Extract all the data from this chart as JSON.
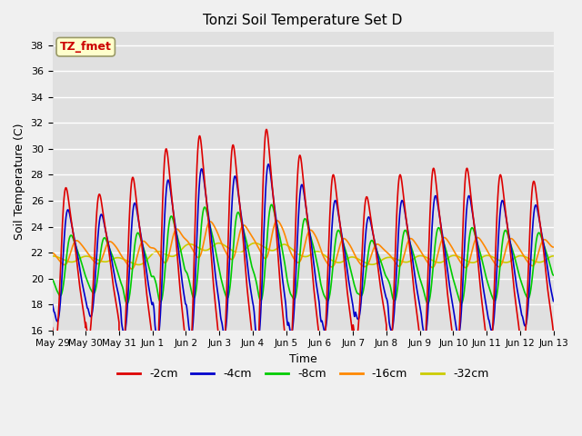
{
  "title": "Tonzi Soil Temperature Set D",
  "xlabel": "Time",
  "ylabel": "Soil Temperature (C)",
  "ylim": [
    16,
    39
  ],
  "yticks": [
    16,
    18,
    20,
    22,
    24,
    26,
    28,
    30,
    32,
    34,
    36,
    38
  ],
  "xtick_labels": [
    "May 29",
    "May 30",
    "May 31",
    "Jun 1",
    "Jun 2",
    "Jun 3",
    "Jun 4",
    "Jun 5",
    "Jun 6",
    "Jun 7",
    "Jun 8",
    "Jun 9",
    "Jun 10",
    "Jun 11",
    "Jun 12",
    "Jun 13"
  ],
  "legend_labels": [
    "-2cm",
    "-4cm",
    "-8cm",
    "-16cm",
    "-32cm"
  ],
  "legend_colors": [
    "#dd0000",
    "#0000cc",
    "#00cc00",
    "#ff8800",
    "#cccc00"
  ],
  "annotation_text": "TZ_fmet",
  "annotation_color": "#cc0000",
  "annotation_bg": "#ffffcc",
  "annotation_border": "#999966",
  "plot_bg_color": "#e0e0e0",
  "fig_bg_color": "#f0f0f0",
  "grid_color": "#ffffff",
  "n_days": 15,
  "ppd": 288,
  "day_peak_amplitudes": [
    6.0,
    5.5,
    7.0,
    8.5,
    9.0,
    8.5,
    9.5,
    8.0,
    7.0,
    5.5,
    7.0,
    7.5,
    7.5,
    7.0,
    6.5
  ],
  "day_means": [
    21.0,
    21.0,
    20.8,
    21.5,
    22.0,
    21.8,
    22.0,
    21.5,
    21.0,
    20.8,
    21.0,
    21.0,
    21.0,
    21.0,
    21.0
  ]
}
